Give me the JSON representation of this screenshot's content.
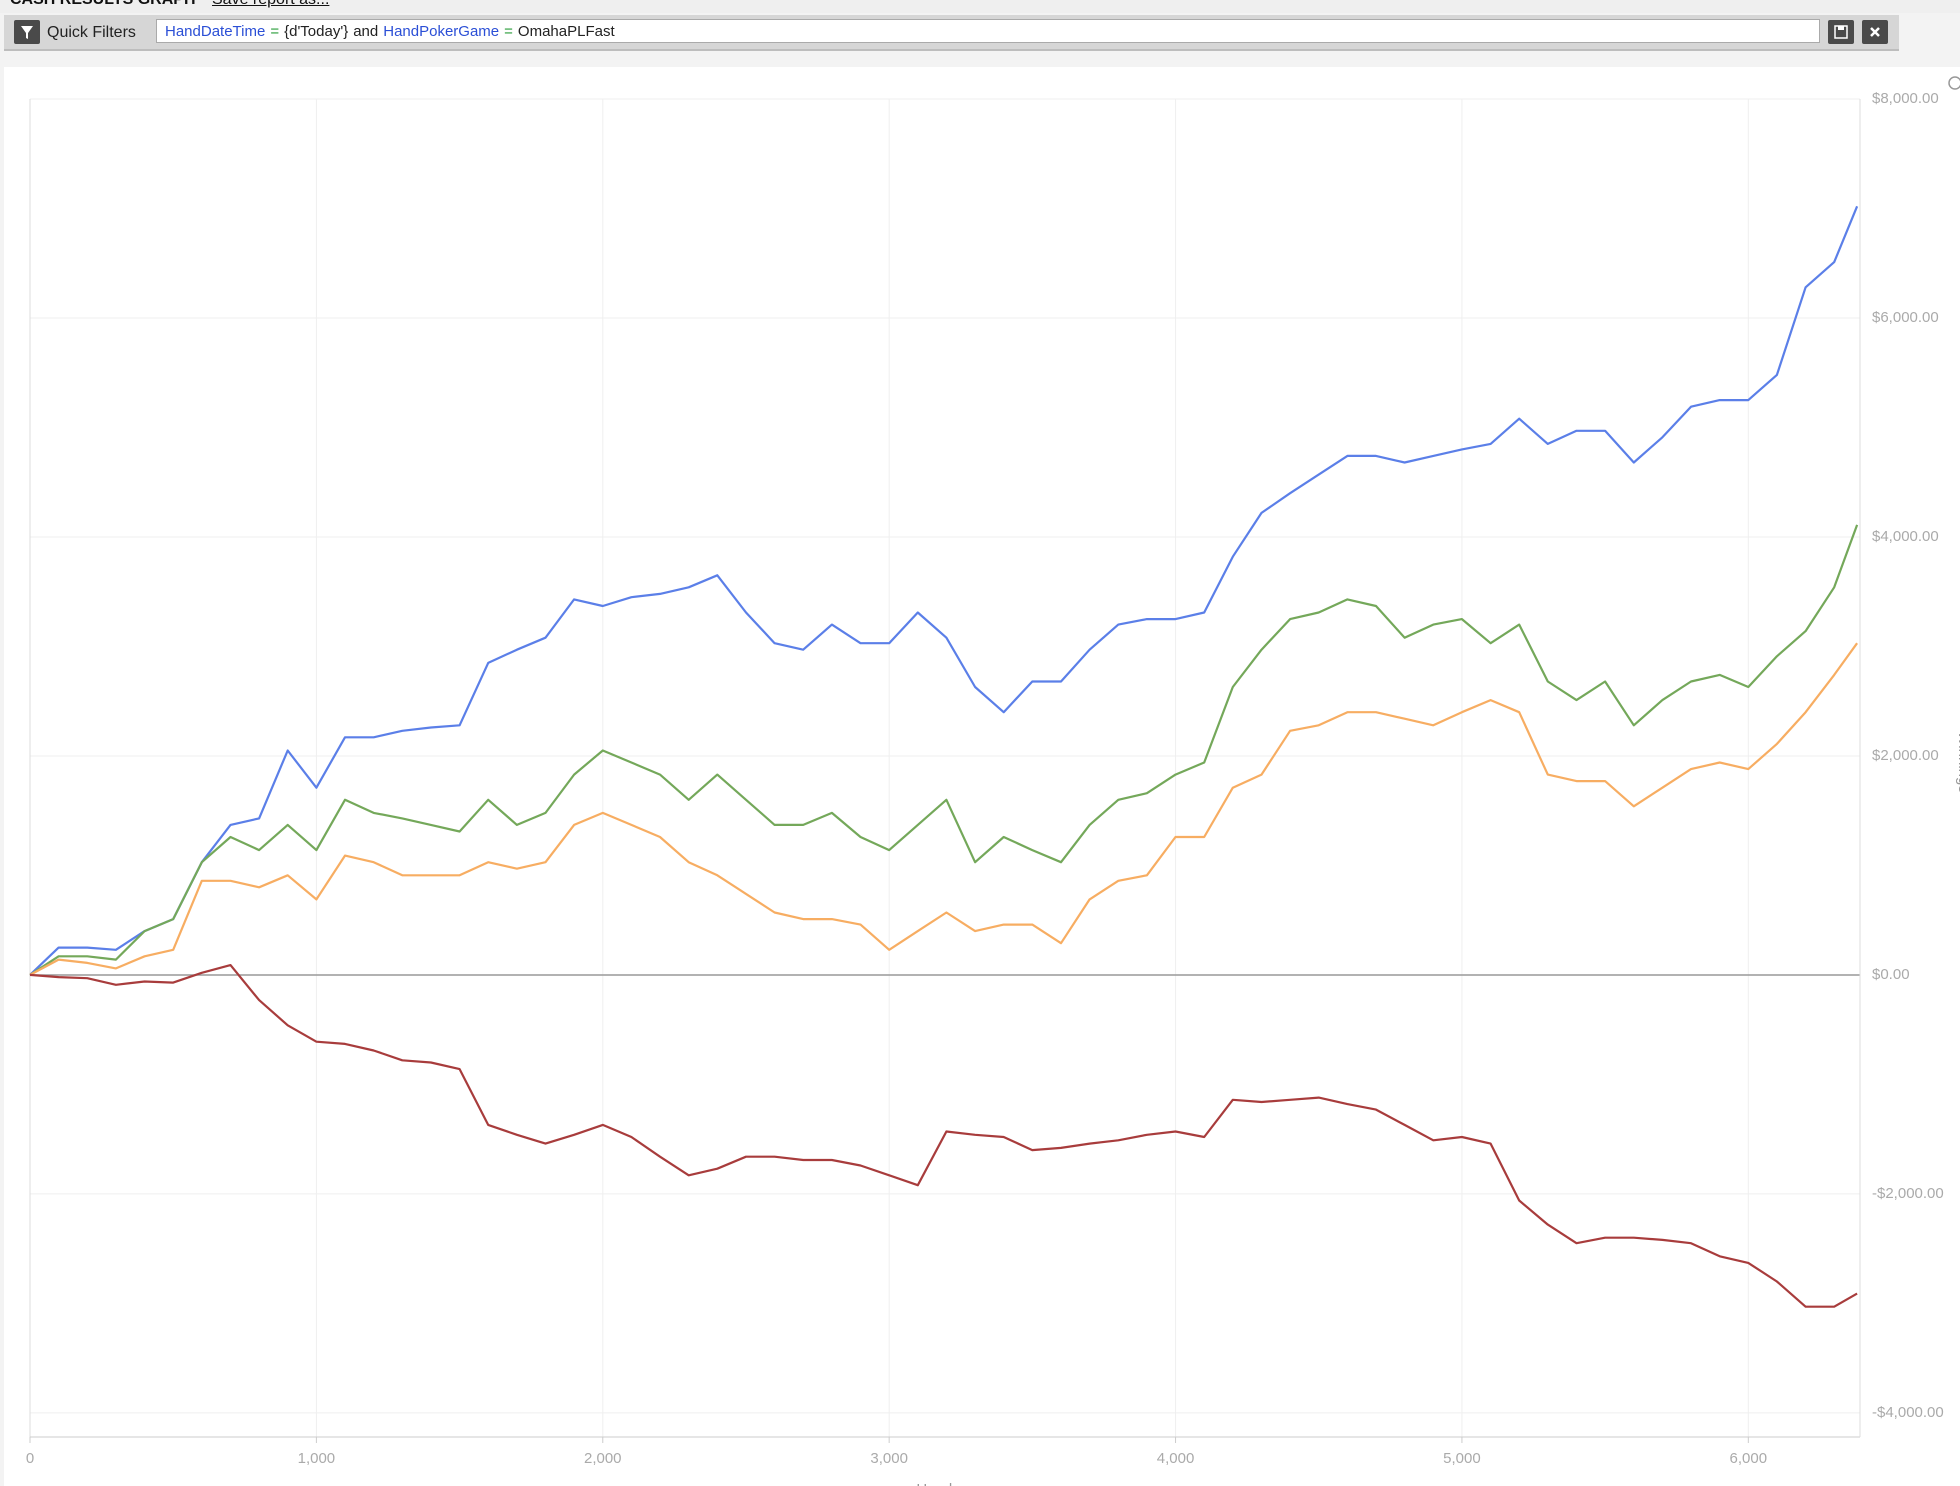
{
  "header": {
    "title": "CASH RESULTS GRAPH",
    "save_link": "Save report as..."
  },
  "filter": {
    "label": "Quick Filters",
    "tokens": [
      {
        "text": "HandDateTime",
        "color": "#2b4fd6"
      },
      {
        "text": "=",
        "color": "#2a9d3a"
      },
      {
        "text": "{d'Today'}",
        "color": "#222222"
      },
      {
        "text": "and",
        "color": "#222222"
      },
      {
        "text": "HandPokerGame",
        "color": "#2b4fd6"
      },
      {
        "text": "=",
        "color": "#2a9d3a"
      },
      {
        "text": "OmahaPLFast",
        "color": "#222222"
      }
    ]
  },
  "chart_data": {
    "type": "line",
    "xlabel": "Hands",
    "ylabel": "Winnings",
    "x": [
      0,
      100,
      200,
      300,
      400,
      500,
      600,
      700,
      800,
      900,
      1000,
      1100,
      1200,
      1300,
      1400,
      1500,
      1600,
      1700,
      1800,
      1900,
      2000,
      2100,
      2200,
      2300,
      2400,
      2500,
      2600,
      2700,
      2800,
      2900,
      3000,
      3100,
      3200,
      3300,
      3400,
      3500,
      3600,
      3700,
      3800,
      3900,
      4000,
      4100,
      4200,
      4300,
      4400,
      4500,
      4600,
      4700,
      4800,
      4900,
      5000,
      5100,
      5200,
      5300,
      5400,
      5500,
      5600,
      5700,
      5800,
      5900,
      6000,
      6100,
      6200,
      6300,
      6380
    ],
    "series": [
      {
        "color": "#5b7fe8",
        "values": [
          0,
          250,
          250,
          230,
          400,
          510,
          1030,
          1370,
          1430,
          2050,
          1710,
          2170,
          2170,
          2230,
          2260,
          2280,
          2850,
          2970,
          3080,
          3430,
          3370,
          3450,
          3480,
          3540,
          3650,
          3310,
          3030,
          2970,
          3200,
          3030,
          3030,
          3310,
          3080,
          2630,
          2400,
          2680,
          2680,
          2970,
          3200,
          3250,
          3250,
          3310,
          3820,
          4220,
          4400,
          4570,
          4740,
          4740,
          4680,
          4740,
          4800,
          4850,
          5080,
          4850,
          4970,
          4970,
          4680,
          4910,
          5190,
          5250,
          5250,
          5480,
          6280,
          6510,
          7020
        ]
      },
      {
        "color": "#74a85a",
        "values": [
          0,
          170,
          170,
          140,
          400,
          510,
          1030,
          1260,
          1140,
          1370,
          1140,
          1600,
          1480,
          1430,
          1370,
          1310,
          1600,
          1370,
          1480,
          1830,
          2050,
          1940,
          1830,
          1600,
          1830,
          1600,
          1370,
          1370,
          1480,
          1260,
          1140,
          1370,
          1600,
          1030,
          1260,
          1140,
          1030,
          1370,
          1600,
          1660,
          1830,
          1940,
          2630,
          2970,
          3250,
          3310,
          3430,
          3370,
          3080,
          3200,
          3250,
          3030,
          3200,
          2680,
          2510,
          2680,
          2280,
          2510,
          2680,
          2740,
          2630,
          2910,
          3140,
          3540,
          4110
        ]
      },
      {
        "color": "#f7ad62",
        "values": [
          0,
          140,
          110,
          60,
          170,
          230,
          860,
          860,
          800,
          910,
          690,
          1090,
          1030,
          910,
          910,
          910,
          1030,
          970,
          1030,
          1370,
          1480,
          1370,
          1260,
          1030,
          910,
          740,
          570,
          510,
          510,
          460,
          230,
          400,
          570,
          400,
          460,
          460,
          290,
          690,
          860,
          910,
          1260,
          1260,
          1710,
          1830,
          2230,
          2280,
          2400,
          2400,
          2340,
          2280,
          2400,
          2510,
          2400,
          1830,
          1770,
          1770,
          1540,
          1710,
          1880,
          1940,
          1880,
          2110,
          2400,
          2740,
          3030
        ]
      },
      {
        "color": "#a83c3c",
        "values": [
          0,
          -20,
          -30,
          -90,
          -60,
          -70,
          20,
          90,
          -230,
          -460,
          -610,
          -630,
          -690,
          -780,
          -800,
          -860,
          -1370,
          -1460,
          -1540,
          -1460,
          -1370,
          -1480,
          -1660,
          -1830,
          -1770,
          -1660,
          -1660,
          -1690,
          -1690,
          -1740,
          -1830,
          -1920,
          -1430,
          -1460,
          -1480,
          -1600,
          -1580,
          -1540,
          -1510,
          -1460,
          -1430,
          -1480,
          -1140,
          -1160,
          -1140,
          -1120,
          -1180,
          -1230,
          -1370,
          -1510,
          -1480,
          -1540,
          -2060,
          -2280,
          -2450,
          -2400,
          -2400,
          -2420,
          -2450,
          -2570,
          -2630,
          -2800,
          -3030,
          -3030,
          -2910
        ]
      }
    ],
    "xlim": [
      0,
      6390
    ],
    "xticks": [
      0,
      {
        "value": 1000,
        "label": "1,000"
      },
      {
        "value": 2000,
        "label": "2,000"
      },
      {
        "value": 3000,
        "label": "3,000"
      },
      {
        "value": 4000,
        "label": "4,000"
      },
      {
        "value": 5000,
        "label": "5,000"
      },
      {
        "value": 6000,
        "label": "6,000"
      }
    ],
    "ylim": [
      -4220,
      8000
    ],
    "yticks": [
      {
        "value": -4000,
        "label": "-$4,000.00"
      },
      {
        "value": -2000,
        "label": "-$2,000.00"
      },
      {
        "value": 0,
        "label": "$0.00"
      },
      {
        "value": 2000,
        "label": "$2,000.00"
      },
      {
        "value": 4000,
        "label": "$4,000.00"
      },
      {
        "value": 6000,
        "label": "$6,000.00"
      },
      {
        "value": 8000,
        "label": "$8,000.00"
      }
    ],
    "grid": true
  }
}
